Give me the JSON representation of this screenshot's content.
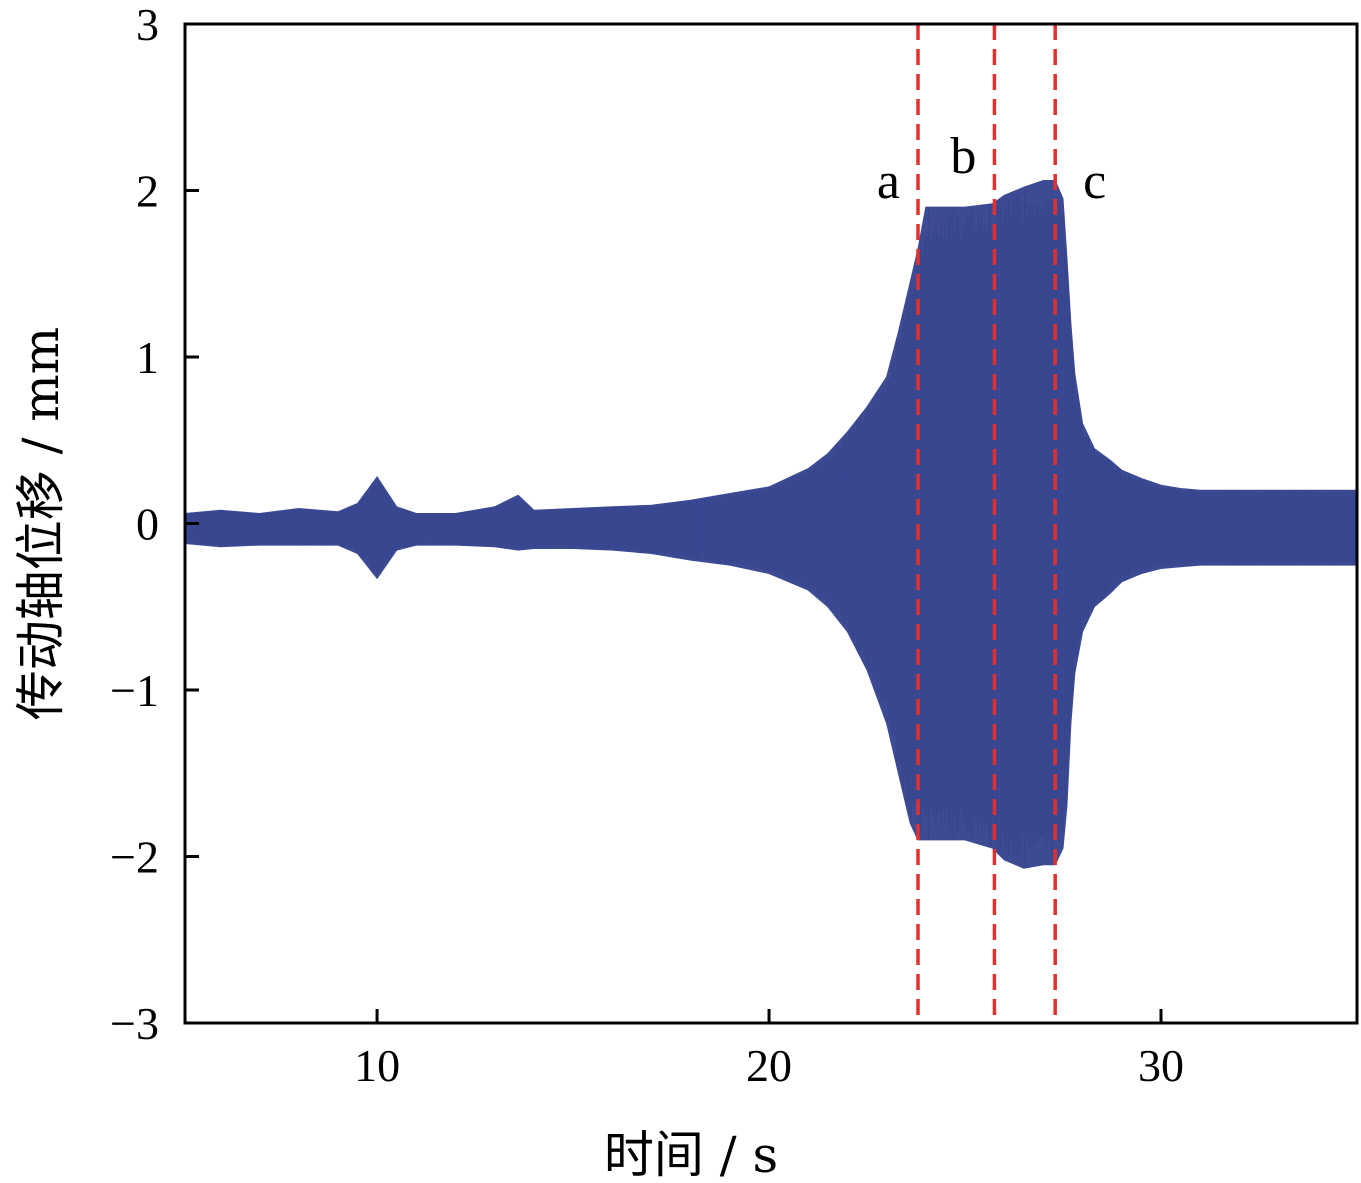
{
  "chart_data": {
    "type": "line",
    "title": "",
    "xlabel": "时间 / s",
    "ylabel": "传动轴位移 / mm",
    "xlim": [
      5.1,
      35
    ],
    "ylim": [
      -3,
      3
    ],
    "x_ticks": [
      10,
      20,
      30
    ],
    "y_ticks": [
      -3,
      -2,
      -1,
      0,
      1,
      2,
      3
    ],
    "y_tick_labels": [
      "−3",
      "−2",
      "−1",
      "0",
      "1",
      "2",
      "3"
    ],
    "grid": false,
    "legend": "none",
    "series": [
      {
        "style": "oscillating-envelope",
        "color": "#3d4b94",
        "x": [
          5.1,
          6.0,
          7.0,
          8.0,
          9.0,
          9.5,
          10.0,
          10.5,
          11.0,
          12.0,
          13.0,
          13.6,
          14.0,
          15.0,
          16.0,
          17.0,
          18.0,
          19.0,
          20.0,
          21.0,
          21.5,
          22.0,
          22.5,
          23.0,
          23.3,
          23.6,
          23.8,
          24.0,
          25.0,
          25.7,
          26.0,
          26.5,
          27.0,
          27.3,
          27.5,
          27.6,
          27.7,
          27.8,
          28.0,
          28.3,
          28.7,
          29.0,
          29.5,
          30.0,
          30.5,
          31.0,
          32.0,
          33.0,
          34.0,
          35.0
        ],
        "upper": [
          0.06,
          0.08,
          0.06,
          0.09,
          0.07,
          0.12,
          0.28,
          0.1,
          0.06,
          0.06,
          0.1,
          0.17,
          0.08,
          0.09,
          0.1,
          0.11,
          0.14,
          0.18,
          0.22,
          0.33,
          0.42,
          0.55,
          0.7,
          0.88,
          1.15,
          1.45,
          1.65,
          1.9,
          1.9,
          1.92,
          1.97,
          2.02,
          2.06,
          2.06,
          1.95,
          1.6,
          1.2,
          0.9,
          0.6,
          0.45,
          0.38,
          0.32,
          0.27,
          0.23,
          0.21,
          0.2,
          0.2,
          0.2,
          0.2,
          0.2
        ],
        "lower": [
          -0.12,
          -0.14,
          -0.13,
          -0.13,
          -0.13,
          -0.18,
          -0.33,
          -0.16,
          -0.13,
          -0.13,
          -0.14,
          -0.16,
          -0.15,
          -0.15,
          -0.16,
          -0.18,
          -0.22,
          -0.25,
          -0.3,
          -0.4,
          -0.5,
          -0.65,
          -0.88,
          -1.2,
          -1.5,
          -1.8,
          -1.9,
          -1.9,
          -1.9,
          -1.95,
          -2.02,
          -2.07,
          -2.05,
          -2.05,
          -1.95,
          -1.7,
          -1.2,
          -0.9,
          -0.65,
          -0.5,
          -0.42,
          -0.35,
          -0.3,
          -0.27,
          -0.26,
          -0.25,
          -0.25,
          -0.25,
          -0.25,
          -0.25
        ]
      }
    ],
    "annotations": [
      {
        "type": "vline",
        "x": 23.8,
        "label": "a",
        "label_y": 2.05,
        "label_side": "left",
        "color": "#e0312e",
        "style": "dashed"
      },
      {
        "type": "vline",
        "x": 25.75,
        "label": "b",
        "label_y": 2.2,
        "label_side": "left",
        "color": "#e0312e",
        "style": "dashed"
      },
      {
        "type": "vline",
        "x": 27.3,
        "label": "c",
        "label_y": 2.05,
        "label_side": "right",
        "color": "#e0312e",
        "style": "dashed"
      }
    ]
  }
}
